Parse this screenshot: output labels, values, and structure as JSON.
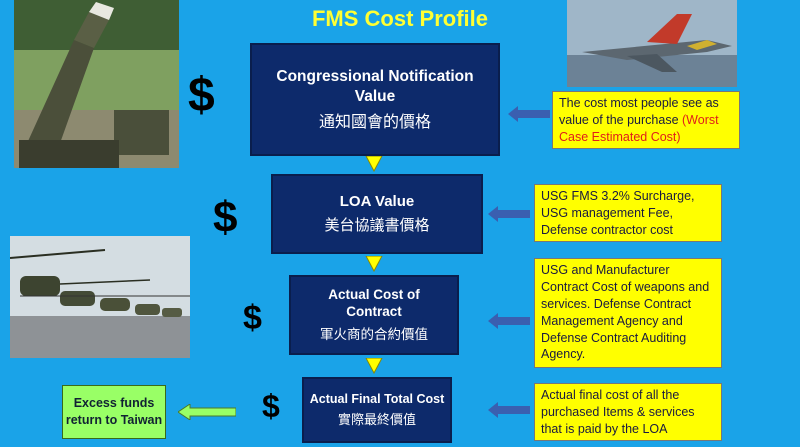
{
  "title": "FMS Cost Profile",
  "boxes": [
    {
      "en": "Congressional Notification Value",
      "zh": "通知國會的價格"
    },
    {
      "en": "LOA Value",
      "zh": "美台協議書價格"
    },
    {
      "en": "Actual Cost of Contract",
      "zh": "軍火商的合約價值"
    },
    {
      "en": "Actual Final Total Cost",
      "zh": "實際最終價值"
    }
  ],
  "notes": [
    {
      "text": "The cost most people see as value of the purchase",
      "highlight": "(Worst Case Estimated Cost)"
    },
    {
      "text": "USG FMS 3.2% Surcharge, USG management Fee, Defense contractor cost"
    },
    {
      "text": "USG and Manufacturer Contract Cost of weapons and services.  Defense Contract Management Agency and Defense Contract Auditing Agency."
    },
    {
      "text": "Actual final cost of all the purchased Items & services that is paid by the LOA"
    }
  ],
  "dollar_sign": "$",
  "excess": "Excess funds return to Taiwan",
  "colors": {
    "background": "#1aa3e8",
    "box": "#0d2a6b",
    "note": "#ffff00",
    "arrow_down": "#ffff00",
    "arrow_left": "#3a5fb0",
    "green": "#99ff66",
    "title": "#ffff33"
  }
}
